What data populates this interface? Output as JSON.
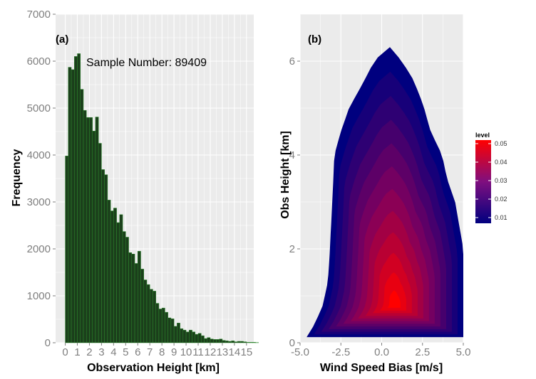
{
  "chart_data": [
    {
      "type": "bar",
      "panel_label": "(a)",
      "annotation": "Sample Number: 89409",
      "xlabel": "Observation Height [km]",
      "ylabel": "Frequency",
      "xlim": [
        -0.8,
        15.6
      ],
      "ylim": [
        0,
        7000
      ],
      "xticks": [
        "0",
        "1",
        "2",
        "3",
        "4",
        "5",
        "6",
        "7",
        "8",
        "9",
        "10",
        "11",
        "12",
        "13",
        "14",
        "15"
      ],
      "yticks": [
        "0",
        "1000",
        "2000",
        "3000",
        "4000",
        "5000",
        "6000",
        "7000"
      ],
      "bin_width": 0.25,
      "bin_start": 0,
      "values": [
        3980,
        5870,
        5820,
        6100,
        6160,
        5400,
        4950,
        4800,
        4800,
        4510,
        4810,
        4250,
        3690,
        3580,
        3040,
        2810,
        2870,
        2560,
        2730,
        2370,
        2250,
        1920,
        1890,
        1690,
        1950,
        1570,
        1340,
        1240,
        1140,
        1100,
        840,
        720,
        740,
        650,
        530,
        510,
        350,
        420,
        300,
        270,
        230,
        270,
        230,
        180,
        200,
        150,
        90,
        110,
        80,
        70,
        70,
        80,
        50,
        40,
        30,
        40,
        20,
        30,
        30,
        20,
        10,
        10,
        10,
        5
      ],
      "bar_color": "#1b3f1b",
      "bar_edge": "#2e8b2e",
      "grid": true
    },
    {
      "type": "heatmap",
      "subtype": "filled-density-contour",
      "panel_label": "(b)",
      "xlabel": "Wind Speed Bias [m/s]",
      "ylabel": "Obs Height [km]",
      "xlim": [
        -5.0,
        5.0
      ],
      "ylim": [
        0,
        7
      ],
      "xticks": [
        "-5.0",
        "-2.5",
        "0.0",
        "2.5",
        "5.0"
      ],
      "yticks": [
        "0",
        "2",
        "4",
        "6"
      ],
      "legend": {
        "title": "level",
        "placement": "right",
        "ticks": [
          "0.05",
          "0.04",
          "0.03",
          "0.02",
          "0.01"
        ],
        "color_low": "#00007f",
        "color_high": "#ff0000"
      },
      "peak": {
        "x": 0.8,
        "y": 0.8
      },
      "grid": true
    }
  ]
}
